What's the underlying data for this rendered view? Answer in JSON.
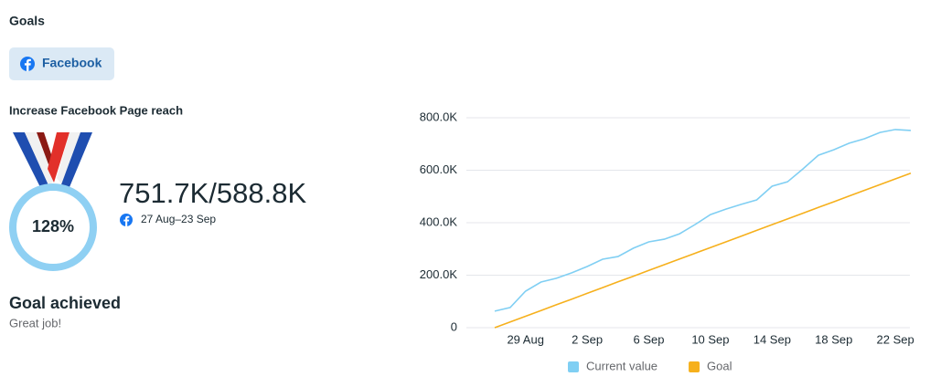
{
  "header": {
    "title": "Goals"
  },
  "tab": {
    "label": "Facebook"
  },
  "goal": {
    "title": "Increase Facebook Page reach",
    "percent": "128%",
    "progress": "751.7K/588.8K",
    "date_range": "27 Aug–23 Sep",
    "status": "Goal achieved",
    "message": "Great job!"
  },
  "chart_data": {
    "type": "line",
    "categories": [
      null,
      null,
      "29 Aug",
      null,
      null,
      null,
      "2 Sep",
      null,
      null,
      null,
      "6 Sep",
      null,
      null,
      null,
      "10 Sep",
      null,
      null,
      null,
      "14 Sep",
      null,
      null,
      null,
      "18 Sep",
      null,
      null,
      null,
      "22 Sep",
      null
    ],
    "series": [
      {
        "name": "Current value",
        "color": "#80cff3",
        "values": [
          63000,
          77000,
          139000,
          174000,
          188000,
          209000,
          233000,
          261000,
          271000,
          303000,
          327000,
          337000,
          358000,
          393000,
          431000,
          452000,
          470000,
          487000,
          539000,
          556000,
          605000,
          657000,
          678000,
          703000,
          720000,
          744000,
          755000,
          751700
        ]
      },
      {
        "name": "Goal",
        "color": "#f6b01c",
        "values": [
          0,
          21807,
          43615,
          65422,
          87230,
          109037,
          130844,
          152652,
          174459,
          196267,
          218074,
          239881,
          261689,
          283496,
          305304,
          327111,
          348919,
          370726,
          392533,
          414341,
          436148,
          457956,
          479763,
          501570,
          523378,
          545185,
          566993,
          588800
        ]
      }
    ],
    "ylim": [
      0,
      800000
    ],
    "yticks": [
      0,
      {
        "value": 200000,
        "label": "200.0K"
      },
      {
        "value": 400000,
        "label": "400.0K"
      },
      {
        "value": 600000,
        "label": "600.0K"
      },
      {
        "value": 800000,
        "label": "800.0K"
      }
    ],
    "grid": true,
    "legend": "bottom"
  }
}
